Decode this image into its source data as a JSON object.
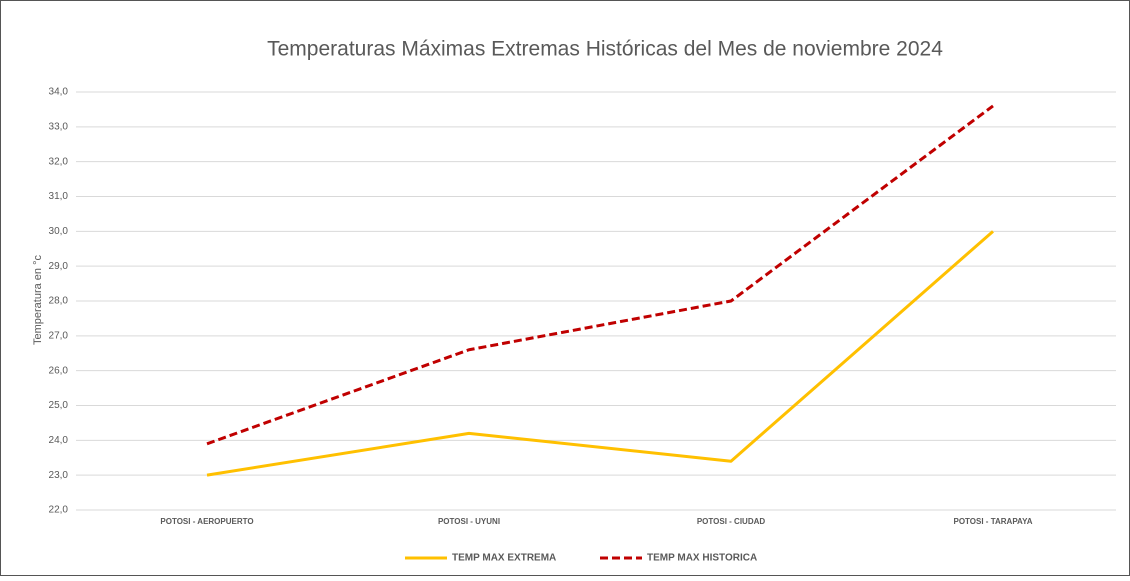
{
  "chart_data": {
    "type": "line",
    "title": "Temperaturas Máximas Extremas Históricas del Mes de noviembre 2024",
    "y_label": "Temperatura en °c",
    "categories": [
      "POTOSI - AEROPUERTO",
      "POTOSI - UYUNI",
      "POTOSI - CIUDAD",
      "POTOSI - TARAPAYA"
    ],
    "series": [
      {
        "name": "TEMP MAX EXTREMA",
        "color": "#ffc000",
        "dashed": false,
        "values": [
          23.0,
          24.2,
          23.4,
          30.0
        ]
      },
      {
        "name": "TEMP MAX HISTORICA",
        "color": "#c00000",
        "dashed": true,
        "values": [
          23.9,
          26.6,
          28.0,
          33.6
        ]
      }
    ],
    "ylim": [
      22,
      34
    ],
    "yticks": [
      {
        "value": 22,
        "label": "22,0"
      },
      {
        "value": 23,
        "label": "23,0"
      },
      {
        "value": 24,
        "label": "24,0"
      },
      {
        "value": 25,
        "label": "25,0"
      },
      {
        "value": 26,
        "label": "26,0"
      },
      {
        "value": 27,
        "label": "27,0"
      },
      {
        "value": 28,
        "label": "28,0"
      },
      {
        "value": 29,
        "label": "29,0"
      },
      {
        "value": 30,
        "label": "30,0"
      },
      {
        "value": 31,
        "label": "31,0"
      },
      {
        "value": 32,
        "label": "32,0"
      },
      {
        "value": 33,
        "label": "33,0"
      },
      {
        "value": 34,
        "label": "34,0"
      }
    ],
    "grid": true,
    "legend": "bottom"
  }
}
